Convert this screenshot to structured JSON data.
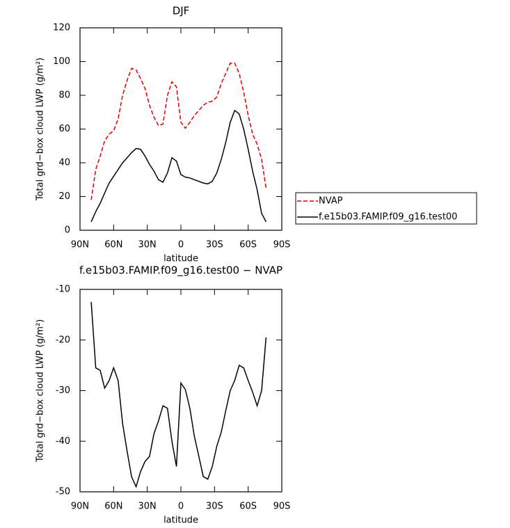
{
  "chart_data": [
    {
      "type": "line",
      "title": "DJF",
      "x_label": "latitude",
      "y_label": "Total grd−box cloud LWP (g/m²)",
      "x": [
        80,
        76,
        72,
        68,
        64,
        60,
        56,
        52,
        48,
        44,
        40,
        36,
        32,
        28,
        24,
        20,
        16,
        12,
        8,
        4,
        0,
        -4,
        -8,
        -12,
        -16,
        -20,
        -24,
        -28,
        -32,
        -36,
        -40,
        -44,
        -48,
        -52,
        -56,
        -60,
        -64,
        -68,
        -72,
        -76
      ],
      "xlim": [
        90,
        -90
      ],
      "xticks": [
        {
          "value": 90,
          "label": "90N"
        },
        {
          "value": 60,
          "label": "60N"
        },
        {
          "value": 30,
          "label": "30N"
        },
        0,
        {
          "value": -30,
          "label": "30S"
        },
        {
          "value": -60,
          "label": "60S"
        },
        {
          "value": -90,
          "label": "90S"
        }
      ],
      "ylim": [
        0,
        120
      ],
      "yticks": [
        0,
        20,
        40,
        60,
        80,
        100,
        120
      ],
      "legend": "right",
      "series": [
        {
          "name": "NVAP",
          "color": "#e00000",
          "dash": true,
          "values": [
            18,
            36,
            44,
            53,
            57,
            59,
            66,
            80,
            89,
            96,
            95,
            90,
            84,
            74,
            67,
            62,
            63,
            80,
            88,
            85,
            64,
            60.5,
            64,
            68,
            71,
            74,
            76,
            76.5,
            79,
            87,
            93,
            99,
            99,
            93,
            82,
            68,
            57,
            51,
            42,
            25
          ]
        },
        {
          "name": "f.e15b03.FAMIP.f09_g16.test00",
          "color": "#000000",
          "dash": false,
          "values": [
            5,
            11,
            16,
            22,
            28,
            32,
            36,
            40,
            43,
            46,
            48.5,
            48,
            44,
            39,
            35,
            30,
            28.5,
            34,
            43,
            41,
            33,
            31.5,
            31,
            30,
            29,
            28,
            27.5,
            29,
            34,
            42,
            52,
            64,
            71,
            69,
            60,
            48,
            35,
            24,
            10,
            5
          ]
        }
      ]
    },
    {
      "type": "line",
      "title": "f.e15b03.FAMIP.f09_g16.test00 − NVAP",
      "x_label": "latitude",
      "y_label": "Total grd−box cloud LWP (g/m²)",
      "x": [
        80,
        76,
        72,
        68,
        64,
        60,
        56,
        52,
        48,
        44,
        40,
        36,
        32,
        28,
        24,
        20,
        16,
        12,
        8,
        4,
        0,
        -4,
        -8,
        -12,
        -16,
        -20,
        -24,
        -28,
        -32,
        -36,
        -40,
        -44,
        -48,
        -52,
        -56,
        -60,
        -64,
        -68,
        -72,
        -76
      ],
      "xlim": [
        90,
        -90
      ],
      "xticks": [
        {
          "value": 90,
          "label": "90N"
        },
        {
          "value": 60,
          "label": "60N"
        },
        {
          "value": 30,
          "label": "30N"
        },
        0,
        {
          "value": -30,
          "label": "30S"
        },
        {
          "value": -60,
          "label": "60S"
        },
        {
          "value": -90,
          "label": "90S"
        }
      ],
      "ylim": [
        -50,
        -10
      ],
      "yticks": [
        -50,
        -40,
        -30,
        -20,
        -10
      ],
      "series": [
        {
          "color": "#000000",
          "dash": false,
          "values": [
            -12.5,
            -25.5,
            -26,
            -29.5,
            -28,
            -25.5,
            -28,
            -36.5,
            -42,
            -47,
            -49,
            -46,
            -44,
            -43,
            -38.5,
            -36,
            -33,
            -33.5,
            -40,
            -45,
            -28.5,
            -29.8,
            -33.5,
            -39,
            -43,
            -47,
            -47.5,
            -45,
            -41,
            -38.2,
            -34,
            -30,
            -28,
            -25,
            -25.5,
            -28,
            -30.3,
            -33,
            -30,
            -19.5
          ]
        }
      ]
    }
  ]
}
